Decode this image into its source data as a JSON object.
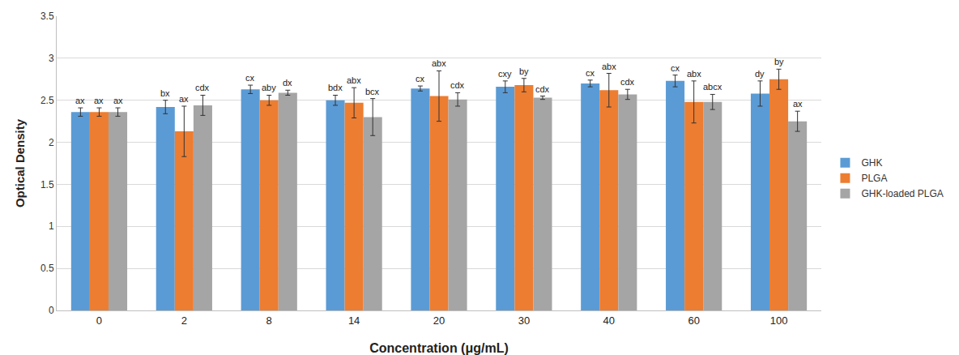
{
  "chart_data": {
    "type": "bar",
    "x_label": "Concentration (μg/mL)",
    "y_label": "Optical Density",
    "categories": [
      "0",
      "2",
      "8",
      "14",
      "20",
      "30",
      "40",
      "60",
      "100"
    ],
    "series": [
      {
        "name": "GHK",
        "color": "#5B9BD5",
        "values": [
          2.36,
          2.42,
          2.63,
          2.5,
          2.64,
          2.66,
          2.7,
          2.73,
          2.58
        ],
        "errors": [
          0.05,
          0.08,
          0.05,
          0.06,
          0.03,
          0.07,
          0.04,
          0.07,
          0.15
        ],
        "annotations": [
          "ax",
          "bx",
          "cx",
          "bdx",
          "cx",
          "cxy",
          "cx",
          "cx",
          "dy"
        ]
      },
      {
        "name": "PLGA",
        "color": "#ED7D31",
        "values": [
          2.36,
          2.13,
          2.5,
          2.47,
          2.55,
          2.68,
          2.62,
          2.48,
          2.75
        ],
        "errors": [
          0.05,
          0.3,
          0.06,
          0.18,
          0.3,
          0.08,
          0.2,
          0.25,
          0.12
        ],
        "annotations": [
          "ax",
          "ax",
          "aby",
          "abx",
          "abx",
          "by",
          "abx",
          "abx",
          "by"
        ]
      },
      {
        "name": "GHK-loaded PLGA",
        "color": "#A5A5A5",
        "values": [
          2.36,
          2.44,
          2.59,
          2.3,
          2.51,
          2.53,
          2.57,
          2.48,
          2.25
        ],
        "errors": [
          0.05,
          0.12,
          0.03,
          0.22,
          0.08,
          0.02,
          0.06,
          0.09,
          0.12
        ],
        "annotations": [
          "ax",
          "cdx",
          "dx",
          "bcx",
          "cdx",
          "cdx",
          "cdx",
          "abcx",
          "ax"
        ]
      }
    ],
    "ylim": [
      0,
      3.5
    ],
    "yticks": [
      0,
      0.5,
      1,
      1.5,
      2,
      2.5,
      3,
      3.5
    ],
    "grid": true,
    "legend": "right"
  }
}
